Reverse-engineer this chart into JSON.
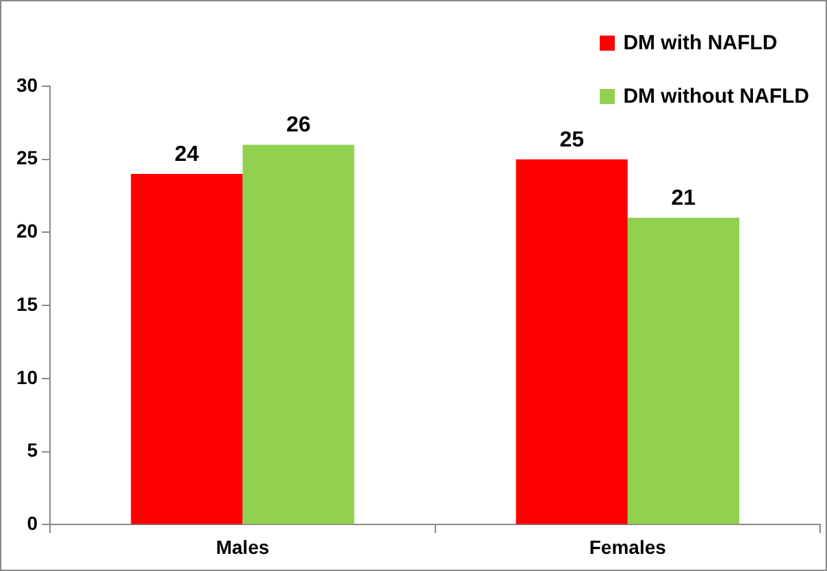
{
  "chart_data": {
    "type": "bar",
    "categories": [
      "Males",
      "Females"
    ],
    "series": [
      {
        "name": "DM with NAFLD",
        "color": "#ff0000",
        "values": [
          24,
          25
        ]
      },
      {
        "name": "DM without NAFLD",
        "color": "#92d050",
        "values": [
          26,
          21
        ]
      }
    ],
    "ylim": [
      0,
      30
    ],
    "yticks": [
      0,
      5,
      10,
      15,
      20,
      25,
      30
    ],
    "grid": false,
    "legend": "top right",
    "data_labels": true
  }
}
